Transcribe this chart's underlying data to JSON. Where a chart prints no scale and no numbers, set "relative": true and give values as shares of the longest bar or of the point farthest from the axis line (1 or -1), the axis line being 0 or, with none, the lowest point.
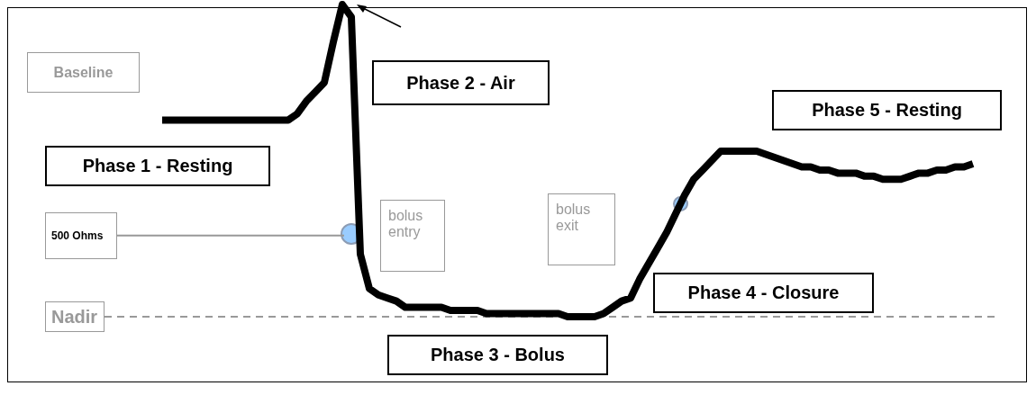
{
  "chart_data": {
    "type": "line",
    "relative": true,
    "grid": false,
    "legend": false,
    "tick_labels": false,
    "marker": "none",
    "line_style": "solid",
    "categories": [
      null,
      null,
      null,
      null,
      null,
      null,
      null,
      null,
      null,
      null,
      null,
      null,
      null,
      null,
      null,
      null,
      null,
      null,
      null,
      null,
      null,
      null,
      null,
      null,
      null,
      null,
      null,
      null,
      null,
      null,
      null,
      null,
      null,
      null,
      null,
      null,
      null,
      null,
      null,
      null,
      null,
      null,
      null,
      null,
      null,
      null,
      null,
      null,
      null,
      null,
      null,
      null,
      null,
      null,
      null,
      null,
      null,
      null,
      null,
      null,
      null,
      null,
      null,
      null,
      null,
      null,
      null,
      null,
      null,
      null,
      null,
      null,
      null,
      null,
      null,
      null,
      null,
      null,
      null,
      null,
      null,
      null,
      null,
      null,
      null,
      null,
      null,
      null,
      null,
      null,
      null
    ],
    "series": [
      {
        "color": "#000000",
        "values": [
          0.63,
          0.63,
          0.63,
          0.63,
          0.63,
          0.63,
          0.63,
          0.63,
          0.63,
          0.63,
          0.63,
          0.63,
          0.63,
          0.63,
          0.63,
          0.65,
          0.69,
          0.72,
          0.75,
          0.88,
          1,
          0.96,
          0.2,
          0.09,
          0.07,
          0.06,
          0.05,
          0.03,
          0.03,
          0.03,
          0.03,
          0.03,
          0.02,
          0.02,
          0.02,
          0.02,
          0.01,
          0.01,
          0.01,
          0.01,
          0.01,
          0.01,
          0.01,
          0.01,
          0.01,
          0,
          0,
          0,
          0,
          0.01,
          0.03,
          0.05,
          0.06,
          0.12,
          0.17,
          0.22,
          0.27,
          0.33,
          0.39,
          0.44,
          0.47,
          0.5,
          0.53,
          0.53,
          0.53,
          0.53,
          0.53,
          0.52,
          0.51,
          0.5,
          0.49,
          0.48,
          0.48,
          0.47,
          0.47,
          0.46,
          0.46,
          0.46,
          0.45,
          0.45,
          0.44,
          0.44,
          0.44,
          0.45,
          0.46,
          0.46,
          0.47,
          0.47,
          0.48,
          0.48,
          0.49
        ]
      }
    ],
    "ref_lines": [
      {
        "axis": "y",
        "value": 0.26,
        "label": "500 Ohms",
        "color": "#999999",
        "line_style": "solid"
      },
      {
        "axis": "y",
        "value": 0,
        "label": "Nadir",
        "color": "#999999",
        "line_style": "dashed"
      }
    ],
    "annotations": [
      "Baseline",
      "Phase 1 - Resting",
      "Phase 2 - Air",
      "Phase 3 - Bolus",
      "Phase 4 - Closure",
      "Phase 5 - Resting",
      "bolus entry",
      "bolus exit"
    ]
  }
}
